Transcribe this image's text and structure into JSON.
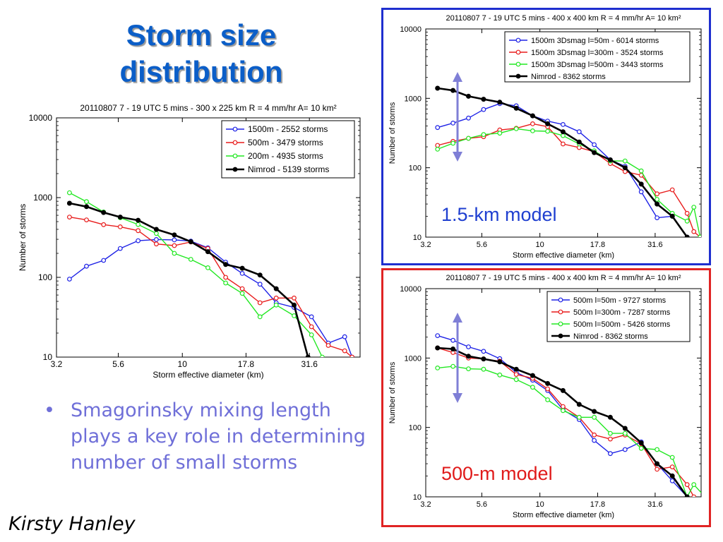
{
  "slide": {
    "title_line1": "Storm size",
    "title_line2": "distribution",
    "bullet_symbol": "•",
    "bullet_text": "Smagorinsky mixing length plays a key role in determining number of small storms",
    "author": "Kirsty Hanley",
    "top_panel_label": "1.5-km model",
    "bottom_panel_label": "500-m model",
    "colors": {
      "title": "#0b5ec8",
      "bullet": "#6f6fd8",
      "top_frame": "#1f2fcf",
      "bottom_frame": "#e02424",
      "arrow": "#7f7fd6"
    }
  },
  "chart_data": [
    {
      "type": "line",
      "title": "20110807 7 - 19 UTC 5 mins - 300 x 225 km R = 4 mm/hr A= 10 km²",
      "xlabel": "Storm effective diameter (km)",
      "ylabel": "Number of storms",
      "xscale": "log",
      "yscale": "log",
      "xlim": [
        3.2,
        50
      ],
      "ylim": [
        10,
        10000
      ],
      "xticks": [
        "3.2",
        "5.6",
        "10",
        "17.8",
        "31.6"
      ],
      "yticks": [
        "10",
        "100",
        "1000",
        "10000"
      ],
      "legend_position": "top-right",
      "series": [
        {
          "name": "1500m - 2552 storms",
          "color": "#1e22e6",
          "width": 1.4,
          "points": [
            [
              3.6,
              95
            ],
            [
              4.2,
              138
            ],
            [
              4.9,
              163
            ],
            [
              5.7,
              230
            ],
            [
              6.7,
              288
            ],
            [
              7.9,
              298
            ],
            [
              9.3,
              295
            ],
            [
              10.8,
              285
            ],
            [
              12.6,
              235
            ],
            [
              14.8,
              155
            ],
            [
              17.2,
              112
            ],
            [
              20.2,
              82
            ],
            [
              23.4,
              48
            ],
            [
              27.5,
              42
            ],
            [
              32.2,
              32
            ],
            [
              37.5,
              15
            ],
            [
              43.5,
              18
            ],
            [
              46.5,
              10
            ]
          ]
        },
        {
          "name": "500m - 3479 storms",
          "color": "#e81c1c",
          "width": 1.4,
          "points": [
            [
              3.6,
              570
            ],
            [
              4.2,
              525
            ],
            [
              4.9,
              458
            ],
            [
              5.7,
              430
            ],
            [
              6.7,
              385
            ],
            [
              7.9,
              262
            ],
            [
              9.3,
              250
            ],
            [
              10.8,
              278
            ],
            [
              12.6,
              230
            ],
            [
              14.8,
              100
            ],
            [
              17.2,
              72
            ],
            [
              20.2,
              48
            ],
            [
              23.4,
              55
            ],
            [
              27.5,
              55
            ],
            [
              32.2,
              24
            ],
            [
              37.5,
              14
            ],
            [
              43.5,
              12
            ],
            [
              46.5,
              10
            ]
          ]
        },
        {
          "name": "200m - 4935 storms",
          "color": "#22e822",
          "width": 1.4,
          "points": [
            [
              3.6,
              1150
            ],
            [
              4.2,
              890
            ],
            [
              4.9,
              660
            ],
            [
              5.7,
              560
            ],
            [
              6.7,
              460
            ],
            [
              7.9,
              355
            ],
            [
              9.3,
              200
            ],
            [
              10.8,
              168
            ],
            [
              12.6,
              132
            ],
            [
              14.8,
              85
            ],
            [
              17.2,
              63
            ],
            [
              20.2,
              32
            ],
            [
              23.4,
              45
            ],
            [
              27.5,
              33
            ],
            [
              32.2,
              19
            ],
            [
              35.5,
              10
            ]
          ]
        },
        {
          "name": "Nimrod - 5139 storms",
          "color": "#000000",
          "width": 2.6,
          "points": [
            [
              3.6,
              850
            ],
            [
              4.2,
              770
            ],
            [
              4.9,
              650
            ],
            [
              5.7,
              570
            ],
            [
              6.7,
              520
            ],
            [
              7.9,
              400
            ],
            [
              9.3,
              340
            ],
            [
              10.8,
              280
            ],
            [
              12.6,
              210
            ],
            [
              14.8,
              145
            ],
            [
              17.2,
              130
            ],
            [
              20.2,
              107
            ],
            [
              23.4,
              72
            ],
            [
              27.5,
              45
            ],
            [
              31.2,
              10
            ]
          ]
        }
      ]
    },
    {
      "type": "line",
      "title": "20110807 7 - 19 UTC 5 mins - 400 x 400 km R = 4 mm/hr A= 10 km²",
      "xlabel": "Storm effective diameter (km)",
      "ylabel": "Number of storms",
      "xscale": "log",
      "yscale": "log",
      "xlim": [
        3.2,
        50
      ],
      "ylim": [
        10,
        10000
      ],
      "xticks": [
        "3.2",
        "5.6",
        "10",
        "17.8",
        "31.6"
      ],
      "yticks": [
        "10",
        "100",
        "1000",
        "10000"
      ],
      "legend_position": "top-right",
      "series": [
        {
          "name": "1500m 3Dsmag l=50m - 6014 storms",
          "color": "#1e22e6",
          "width": 1.4,
          "points": [
            [
              3.6,
              380
            ],
            [
              4.2,
              440
            ],
            [
              4.9,
              520
            ],
            [
              5.7,
              690
            ],
            [
              6.7,
              840
            ],
            [
              7.9,
              780
            ],
            [
              9.3,
              560
            ],
            [
              10.8,
              470
            ],
            [
              12.6,
              420
            ],
            [
              14.8,
              330
            ],
            [
              17.2,
              215
            ],
            [
              20.2,
              130
            ],
            [
              23.4,
              105
            ],
            [
              27.5,
              45
            ],
            [
              32.2,
              19
            ],
            [
              37.5,
              20
            ],
            [
              43.5,
              10
            ]
          ]
        },
        {
          "name": "1500m 3Dsmag l=300m - 3524 storms",
          "color": "#e81c1c",
          "width": 1.4,
          "points": [
            [
              3.6,
              210
            ],
            [
              4.2,
              240
            ],
            [
              4.9,
              265
            ],
            [
              5.7,
              280
            ],
            [
              6.7,
              350
            ],
            [
              7.9,
              370
            ],
            [
              9.3,
              430
            ],
            [
              10.8,
              390
            ],
            [
              12.6,
              220
            ],
            [
              14.8,
              195
            ],
            [
              17.2,
              170
            ],
            [
              20.2,
              115
            ],
            [
              23.4,
              88
            ],
            [
              27.5,
              78
            ],
            [
              32.2,
              42
            ],
            [
              37.5,
              48
            ],
            [
              43.5,
              22
            ],
            [
              46.5,
              12
            ],
            [
              49.5,
              10
            ]
          ]
        },
        {
          "name": "1500m 3Dsmag l=500m - 3443 storms",
          "color": "#22e822",
          "width": 1.4,
          "points": [
            [
              3.6,
              185
            ],
            [
              4.2,
              225
            ],
            [
              4.9,
              265
            ],
            [
              5.7,
              300
            ],
            [
              6.7,
              315
            ],
            [
              7.9,
              365
            ],
            [
              9.3,
              340
            ],
            [
              10.8,
              335
            ],
            [
              12.6,
              290
            ],
            [
              14.8,
              220
            ],
            [
              17.2,
              175
            ],
            [
              20.2,
              125
            ],
            [
              23.4,
              125
            ],
            [
              27.5,
              90
            ],
            [
              32.2,
              35
            ],
            [
              37.5,
              22
            ],
            [
              43.5,
              17
            ],
            [
              46.5,
              27
            ],
            [
              49.5,
              10
            ]
          ]
        },
        {
          "name": "Nimrod - 8362 storms",
          "color": "#000000",
          "width": 2.6,
          "points": [
            [
              3.6,
              1400
            ],
            [
              4.2,
              1300
            ],
            [
              4.9,
              1070
            ],
            [
              5.7,
              970
            ],
            [
              6.7,
              880
            ],
            [
              7.9,
              720
            ],
            [
              9.3,
              560
            ],
            [
              10.8,
              430
            ],
            [
              12.6,
              330
            ],
            [
              14.8,
              235
            ],
            [
              17.2,
              165
            ],
            [
              20.2,
              130
            ],
            [
              23.4,
              100
            ],
            [
              27.5,
              58
            ],
            [
              32.2,
              30
            ],
            [
              37.5,
              20
            ],
            [
              43.5,
              10
            ]
          ]
        }
      ]
    },
    {
      "type": "line",
      "title": "20110807 7 - 19 UTC 5 mins - 400 x 400 km R = 4 mm/hr A= 10 km²",
      "xlabel": "Storm effective diameter (km)",
      "ylabel": "Number of storms",
      "xscale": "log",
      "yscale": "log",
      "xlim": [
        3.2,
        50
      ],
      "ylim": [
        10,
        10000
      ],
      "xticks": [
        "3.2",
        "5.6",
        "10",
        "17.8",
        "31.6"
      ],
      "yticks": [
        "10",
        "100",
        "1000",
        "10000"
      ],
      "legend_position": "top-right",
      "series": [
        {
          "name": "500m l=50m - 9727 storms",
          "color": "#1e22e6",
          "width": 1.4,
          "points": [
            [
              3.6,
              2100
            ],
            [
              4.2,
              1800
            ],
            [
              4.9,
              1450
            ],
            [
              5.7,
              1250
            ],
            [
              6.7,
              980
            ],
            [
              7.9,
              620
            ],
            [
              9.3,
              480
            ],
            [
              10.8,
              340
            ],
            [
              12.6,
              180
            ],
            [
              14.8,
              130
            ],
            [
              17.2,
              65
            ],
            [
              20.2,
              42
            ],
            [
              23.4,
              48
            ],
            [
              27.5,
              62
            ],
            [
              32.2,
              30
            ],
            [
              37.5,
              17
            ],
            [
              43.5,
              10
            ]
          ]
        },
        {
          "name": "500m l=300m - 7287 storms",
          "color": "#e81c1c",
          "width": 1.4,
          "points": [
            [
              3.6,
              1400
            ],
            [
              4.2,
              1200
            ],
            [
              4.9,
              1000
            ],
            [
              5.7,
              970
            ],
            [
              6.7,
              900
            ],
            [
              7.9,
              580
            ],
            [
              9.3,
              510
            ],
            [
              10.8,
              360
            ],
            [
              12.6,
              200
            ],
            [
              14.8,
              140
            ],
            [
              17.2,
              78
            ],
            [
              20.2,
              68
            ],
            [
              23.4,
              78
            ],
            [
              27.5,
              58
            ],
            [
              32.2,
              25
            ],
            [
              37.5,
              27
            ],
            [
              43.5,
              15
            ],
            [
              46.5,
              10
            ]
          ]
        },
        {
          "name": "500m l=500m - 5426 storms",
          "color": "#22e822",
          "width": 1.4,
          "points": [
            [
              3.6,
              720
            ],
            [
              4.2,
              760
            ],
            [
              4.9,
              700
            ],
            [
              5.7,
              690
            ],
            [
              6.7,
              570
            ],
            [
              7.9,
              490
            ],
            [
              9.3,
              380
            ],
            [
              10.8,
              250
            ],
            [
              12.6,
              175
            ],
            [
              14.8,
              140
            ],
            [
              17.2,
              140
            ],
            [
              20.2,
              82
            ],
            [
              23.4,
              82
            ],
            [
              27.5,
              50
            ],
            [
              32.2,
              48
            ],
            [
              37.5,
              37
            ],
            [
              43.5,
              10
            ],
            [
              46.5,
              15
            ],
            [
              52.0,
              10
            ]
          ]
        },
        {
          "name": "Nimrod - 8362 storms",
          "color": "#000000",
          "width": 2.6,
          "points": [
            [
              3.6,
              1400
            ],
            [
              4.2,
              1350
            ],
            [
              4.9,
              1060
            ],
            [
              5.7,
              970
            ],
            [
              6.7,
              880
            ],
            [
              7.9,
              690
            ],
            [
              9.3,
              560
            ],
            [
              10.8,
              430
            ],
            [
              12.6,
              340
            ],
            [
              14.8,
              215
            ],
            [
              17.2,
              170
            ],
            [
              20.2,
              140
            ],
            [
              23.4,
              97
            ],
            [
              27.5,
              60
            ],
            [
              32.2,
              30
            ],
            [
              37.5,
              20
            ],
            [
              43.5,
              10
            ]
          ]
        }
      ]
    }
  ]
}
